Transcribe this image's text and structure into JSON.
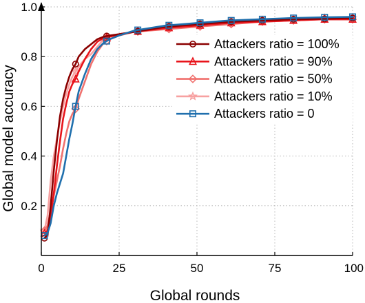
{
  "chart_data": {
    "type": "line",
    "xlabel": "Global rounds",
    "ylabel": "Global model accuracy",
    "xlim": [
      0,
      100
    ],
    "ylim": [
      0,
      1.0
    ],
    "xticks": [
      0,
      25,
      50,
      75,
      100
    ],
    "yticks": [
      0.2,
      0.4,
      0.6,
      0.8,
      1.0
    ],
    "xtick_labels": [
      "0",
      "25",
      "50",
      "75",
      "100"
    ],
    "ytick_labels": [
      "0.2",
      "0.4",
      "0.6",
      "0.8",
      "1.0"
    ],
    "grid": true,
    "legend_position": "top-right",
    "series": [
      {
        "name": "Attackers ratio = 100%",
        "color": "#8b0000",
        "marker": "circle",
        "x": [
          1,
          2,
          3,
          4,
          5,
          6,
          7,
          8,
          9,
          10,
          11,
          12,
          14,
          16,
          18,
          20,
          22,
          25,
          30,
          40,
          50,
          60,
          70,
          80,
          90,
          100
        ],
        "y": [
          0.07,
          0.08,
          0.2,
          0.34,
          0.46,
          0.56,
          0.63,
          0.68,
          0.72,
          0.75,
          0.77,
          0.8,
          0.83,
          0.85,
          0.87,
          0.88,
          0.885,
          0.89,
          0.9,
          0.92,
          0.93,
          0.94,
          0.945,
          0.95,
          0.952,
          0.955
        ],
        "marker_x": [
          1,
          11,
          21,
          31,
          41,
          51,
          61,
          71,
          81,
          91,
          100
        ]
      },
      {
        "name": "Attackers ratio = 90%",
        "color": "#e8141b",
        "marker": "triangle",
        "x": [
          1,
          2,
          3,
          4,
          5,
          6,
          7,
          8,
          9,
          10,
          11,
          12,
          14,
          16,
          18,
          20,
          22,
          25,
          30,
          40,
          50,
          60,
          70,
          80,
          90,
          100
        ],
        "y": [
          0.09,
          0.1,
          0.15,
          0.25,
          0.36,
          0.46,
          0.55,
          0.61,
          0.66,
          0.69,
          0.71,
          0.74,
          0.79,
          0.83,
          0.86,
          0.875,
          0.88,
          0.89,
          0.9,
          0.915,
          0.925,
          0.935,
          0.94,
          0.945,
          0.95,
          0.95
        ],
        "marker_x": [
          1,
          11,
          21,
          31,
          41,
          51,
          61,
          71,
          81,
          91,
          100
        ]
      },
      {
        "name": "Attackers ratio = 50%",
        "color": "#f0716e",
        "marker": "diamond",
        "x": [
          1,
          2,
          3,
          4,
          5,
          6,
          7,
          8,
          9,
          10,
          11,
          12,
          14,
          16,
          18,
          20,
          22,
          25,
          30,
          40,
          50,
          60,
          70,
          80,
          90,
          100
        ],
        "y": [
          0.1,
          0.12,
          0.18,
          0.24,
          0.3,
          0.36,
          0.43,
          0.49,
          0.54,
          0.57,
          0.59,
          0.63,
          0.7,
          0.77,
          0.82,
          0.855,
          0.87,
          0.885,
          0.9,
          0.91,
          0.92,
          0.93,
          0.94,
          0.945,
          0.95,
          0.95
        ],
        "marker_x": [
          1,
          11,
          21,
          31,
          41,
          51,
          61,
          71,
          81,
          91,
          100
        ]
      },
      {
        "name": "Attackers ratio = 10%",
        "color": "#f7a1a1",
        "marker": "star",
        "x": [
          1,
          2,
          3,
          4,
          5,
          6,
          7,
          8,
          9,
          10,
          11,
          12,
          14,
          16,
          18,
          20,
          22,
          25,
          30,
          40,
          50,
          60,
          70,
          80,
          90,
          100
        ],
        "y": [
          0.1,
          0.16,
          0.3,
          0.4,
          0.47,
          0.54,
          0.6,
          0.65,
          0.69,
          0.72,
          0.74,
          0.76,
          0.79,
          0.81,
          0.84,
          0.87,
          0.88,
          0.89,
          0.9,
          0.915,
          0.93,
          0.94,
          0.945,
          0.95,
          0.955,
          0.955
        ],
        "marker_x": [
          1,
          11,
          21,
          31,
          41,
          51,
          61,
          71,
          81,
          91,
          100
        ]
      },
      {
        "name": "Attackers ratio = 0",
        "color": "#1f6fad",
        "marker": "square",
        "x": [
          1,
          2,
          3,
          4,
          5,
          6,
          7,
          8,
          9,
          10,
          11,
          12,
          14,
          16,
          18,
          20,
          22,
          25,
          30,
          40,
          50,
          60,
          70,
          80,
          90,
          100
        ],
        "y": [
          0.08,
          0.09,
          0.13,
          0.2,
          0.25,
          0.29,
          0.33,
          0.4,
          0.47,
          0.53,
          0.6,
          0.66,
          0.73,
          0.79,
          0.83,
          0.855,
          0.87,
          0.885,
          0.905,
          0.925,
          0.935,
          0.945,
          0.95,
          0.955,
          0.958,
          0.96
        ],
        "marker_x": [
          1,
          11,
          21,
          31,
          41,
          51,
          61,
          71,
          81,
          91,
          100
        ]
      }
    ]
  }
}
